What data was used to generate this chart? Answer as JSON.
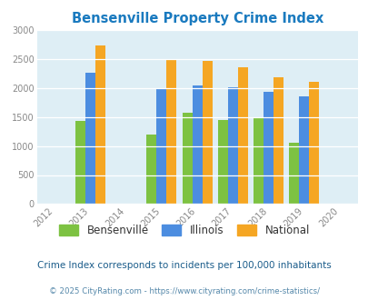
{
  "title": "Bensenville Property Crime Index",
  "years": [
    2013,
    2015,
    2016,
    2017,
    2018,
    2019
  ],
  "bensenville": [
    1430,
    1200,
    1570,
    1450,
    1490,
    1060
  ],
  "illinois": [
    2270,
    2000,
    2050,
    2010,
    1940,
    1850
  ],
  "national": [
    2730,
    2490,
    2460,
    2360,
    2190,
    2100
  ],
  "color_bensenville": "#7dc242",
  "color_illinois": "#4c8de0",
  "color_national": "#f5a623",
  "xlim": [
    2011.5,
    2020.5
  ],
  "ylim": [
    0,
    3000
  ],
  "yticks": [
    0,
    500,
    1000,
    1500,
    2000,
    2500,
    3000
  ],
  "xticks": [
    2012,
    2013,
    2014,
    2015,
    2016,
    2017,
    2018,
    2019,
    2020
  ],
  "bg_color": "#deeef5",
  "fig_bg": "#ffffff",
  "subtitle": "Crime Index corresponds to incidents per 100,000 inhabitants",
  "footer": "© 2025 CityRating.com - https://www.cityrating.com/crime-statistics/",
  "title_color": "#1a7abf",
  "subtitle_color": "#1a5c8a",
  "footer_color": "#5588aa",
  "bar_width": 0.28,
  "legend_labels": [
    "Bensenville",
    "Illinois",
    "National"
  ]
}
